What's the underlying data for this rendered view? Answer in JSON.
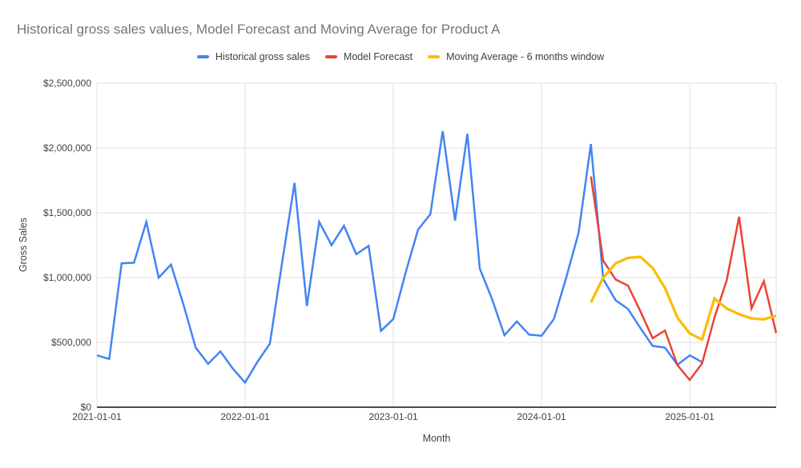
{
  "title": "Historical gross sales values, Model Forecast and Moving Average for Product A",
  "title_color": "#757575",
  "legend": {
    "items": [
      {
        "label": "Historical gross sales",
        "color": "#4285f4"
      },
      {
        "label": "Model Forecast",
        "color": "#ea4335"
      },
      {
        "label": "Moving Average - 6 months window",
        "color": "#fbbc04"
      }
    ]
  },
  "chart_data": {
    "type": "line",
    "title": "Historical gross sales values, Model Forecast and Moving Average for Product A",
    "xlabel": "Month",
    "ylabel": "Gross Sales",
    "ylim": [
      0,
      2500000
    ],
    "grid": true,
    "legend_position": "top",
    "colors": {
      "grid": "#e0e0e0",
      "axis": "#333333",
      "tick_text": "#424242"
    },
    "y_ticks": [
      {
        "value": 0,
        "label": "$0"
      },
      {
        "value": 500000,
        "label": "$500,000"
      },
      {
        "value": 1000000,
        "label": "$1,000,000"
      },
      {
        "value": 1500000,
        "label": "$1,500,000"
      },
      {
        "value": 2000000,
        "label": "$2,000,000"
      },
      {
        "value": 2500000,
        "label": "$2,500,000"
      }
    ],
    "x_axis": {
      "unit": "month",
      "start": "2021-01",
      "end": "2025-08",
      "num_points": 56,
      "tick_labels": [
        "2021-01-01",
        "2022-01-01",
        "2023-01-01",
        "2024-01-01",
        "2025-01-01"
      ],
      "tick_month_indices": [
        0,
        12,
        24,
        36,
        48
      ]
    },
    "series": [
      {
        "name": "Historical gross sales",
        "color": "#4285f4",
        "start_month_index": 0,
        "values": [
          400000,
          372000,
          1110000,
          1115000,
          1430000,
          1000000,
          1100000,
          795000,
          460000,
          335000,
          430000,
          298000,
          190000,
          350000,
          490000,
          1120000,
          1730000,
          780000,
          1430000,
          1250000,
          1400000,
          1180000,
          1245000,
          588000,
          680000,
          1040000,
          1370000,
          1490000,
          2130000,
          1440000,
          2110000,
          1070000,
          833000,
          555000,
          662000,
          560000,
          551000,
          680000,
          1000000,
          1345000,
          2030000,
          988000,
          825000,
          758000,
          612000,
          473000,
          460000,
          327000,
          400000,
          348000
        ]
      },
      {
        "name": "Model Forecast",
        "color": "#ea4335",
        "start_month_index": 40,
        "values": [
          1780000,
          1130000,
          985000,
          938000,
          742000,
          532000,
          592000,
          325000,
          210000,
          338000,
          690000,
          980000,
          1470000,
          762000,
          972000,
          573000
        ]
      },
      {
        "name": "Moving Average - 6 months window",
        "color": "#fbbc04",
        "start_month_index": 40,
        "values": [
          808000,
          1000000,
          1110000,
          1152000,
          1160000,
          1075000,
          920000,
          692000,
          570000,
          522000,
          838000,
          762000,
          718000,
          685000,
          678000,
          707000
        ]
      }
    ]
  }
}
